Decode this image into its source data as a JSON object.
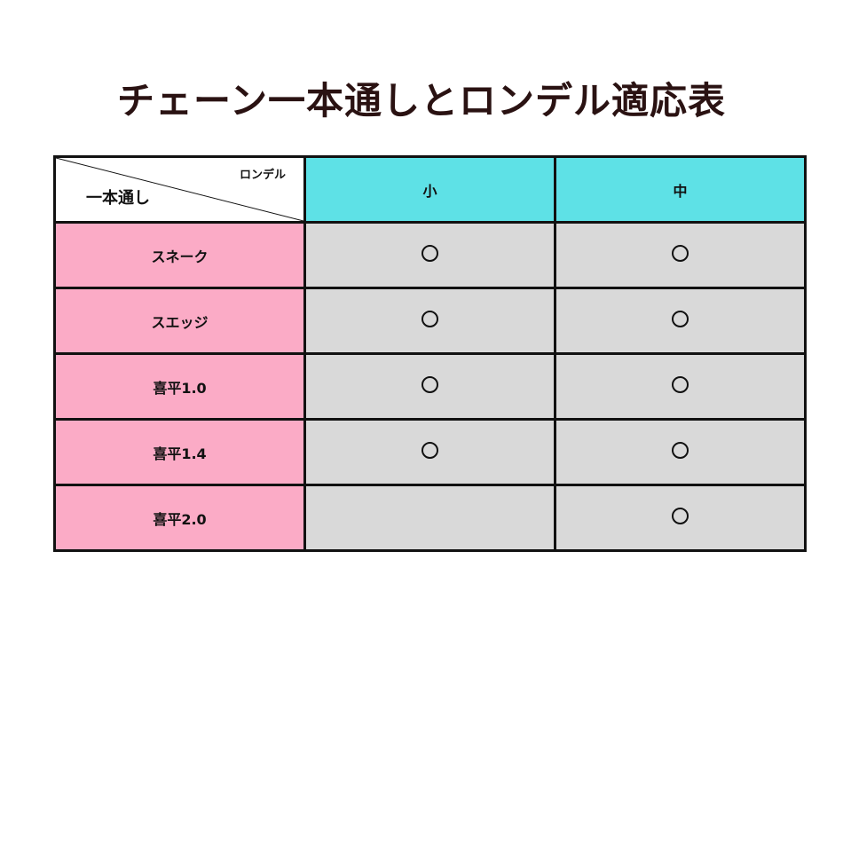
{
  "title": "チェーン一本通しとロンデル適応表",
  "corner": {
    "column_axis": "ロンデル",
    "row_axis": "一本通し"
  },
  "columns": [
    "小",
    "中"
  ],
  "rows": [
    {
      "label": "スネーク",
      "values": [
        "○",
        "○"
      ]
    },
    {
      "label": "スエッジ",
      "values": [
        "○",
        "○"
      ]
    },
    {
      "label": "喜平1.0",
      "values": [
        "○",
        "○"
      ]
    },
    {
      "label": "喜平1.4",
      "values": [
        "○",
        "○"
      ]
    },
    {
      "label": "喜平2.0",
      "values": [
        "",
        "○"
      ]
    }
  ],
  "colors": {
    "header": "#5ee1e6",
    "row_header": "#fbabc6",
    "cell": "#d9d9d9"
  }
}
